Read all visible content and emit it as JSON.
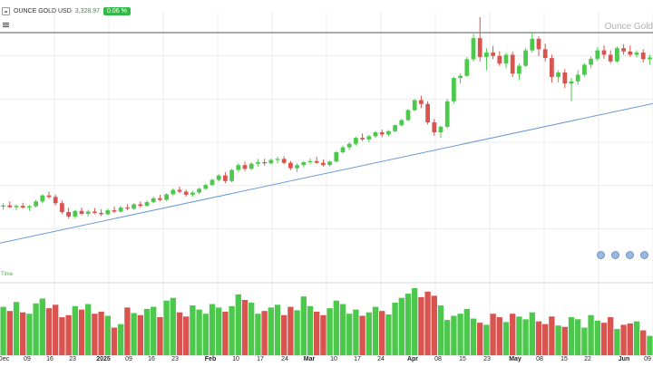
{
  "header": {
    "symbol": "OUNCE GOLD USD",
    "price": "3,328.97",
    "change": "0.06 %"
  },
  "watermark": "Ounce Gold",
  "volume_pane_label": "Time",
  "x_axis_labels": [
    {
      "text": "Dec",
      "bold": false
    },
    {
      "text": "09",
      "bold": false
    },
    {
      "text": "16",
      "bold": false
    },
    {
      "text": "23",
      "bold": false
    },
    {
      "text": "2025",
      "bold": true
    },
    {
      "text": "09",
      "bold": false
    },
    {
      "text": "16",
      "bold": false
    },
    {
      "text": "23",
      "bold": false
    },
    {
      "text": "Feb",
      "bold": true
    },
    {
      "text": "10",
      "bold": false
    },
    {
      "text": "17",
      "bold": false
    },
    {
      "text": "24",
      "bold": false
    },
    {
      "text": "Mar",
      "bold": true
    },
    {
      "text": "10",
      "bold": false
    },
    {
      "text": "17",
      "bold": false
    },
    {
      "text": "24",
      "bold": false
    },
    {
      "text": "Apr",
      "bold": true
    },
    {
      "text": "08",
      "bold": false
    },
    {
      "text": "15",
      "bold": false
    },
    {
      "text": "23",
      "bold": false
    },
    {
      "text": "May",
      "bold": true
    },
    {
      "text": "08",
      "bold": false
    },
    {
      "text": "15",
      "bold": false
    },
    {
      "text": "22",
      "bold": false
    },
    {
      "text": "Jun",
      "bold": true
    },
    {
      "text": "09",
      "bold": false
    }
  ],
  "colors": {
    "up": "#4cc94c",
    "down": "#d9534f",
    "ma": "#6b9bd2",
    "hline": "#555555",
    "grid": "#ececec"
  },
  "event_icons": [
    "calendar-event-icon",
    "calendar-event-icon",
    "calendar-event-icon",
    "calendar-event-icon"
  ],
  "chart_data": {
    "type": "candlestick",
    "bars": [
      {
        "o": 2645,
        "h": 2660,
        "l": 2630,
        "c": 2650
      },
      {
        "o": 2650,
        "h": 2668,
        "l": 2638,
        "c": 2642
      },
      {
        "o": 2642,
        "h": 2655,
        "l": 2628,
        "c": 2648
      },
      {
        "o": 2648,
        "h": 2662,
        "l": 2635,
        "c": 2640
      },
      {
        "o": 2640,
        "h": 2652,
        "l": 2625,
        "c": 2646
      },
      {
        "o": 2646,
        "h": 2675,
        "l": 2640,
        "c": 2668
      },
      {
        "o": 2668,
        "h": 2700,
        "l": 2660,
        "c": 2695
      },
      {
        "o": 2695,
        "h": 2712,
        "l": 2680,
        "c": 2688
      },
      {
        "o": 2688,
        "h": 2698,
        "l": 2650,
        "c": 2660
      },
      {
        "o": 2660,
        "h": 2672,
        "l": 2610,
        "c": 2620
      },
      {
        "o": 2620,
        "h": 2640,
        "l": 2590,
        "c": 2600
      },
      {
        "o": 2600,
        "h": 2630,
        "l": 2592,
        "c": 2625
      },
      {
        "o": 2625,
        "h": 2640,
        "l": 2605,
        "c": 2612
      },
      {
        "o": 2612,
        "h": 2630,
        "l": 2600,
        "c": 2622
      },
      {
        "o": 2622,
        "h": 2638,
        "l": 2610,
        "c": 2616
      },
      {
        "o": 2616,
        "h": 2632,
        "l": 2602,
        "c": 2610
      },
      {
        "o": 2610,
        "h": 2635,
        "l": 2605,
        "c": 2628
      },
      {
        "o": 2628,
        "h": 2645,
        "l": 2615,
        "c": 2622
      },
      {
        "o": 2622,
        "h": 2648,
        "l": 2618,
        "c": 2640
      },
      {
        "o": 2640,
        "h": 2655,
        "l": 2628,
        "c": 2635
      },
      {
        "o": 2635,
        "h": 2660,
        "l": 2630,
        "c": 2655
      },
      {
        "o": 2655,
        "h": 2668,
        "l": 2640,
        "c": 2648
      },
      {
        "o": 2648,
        "h": 2672,
        "l": 2645,
        "c": 2665
      },
      {
        "o": 2665,
        "h": 2690,
        "l": 2660,
        "c": 2682
      },
      {
        "o": 2682,
        "h": 2698,
        "l": 2668,
        "c": 2675
      },
      {
        "o": 2675,
        "h": 2705,
        "l": 2670,
        "c": 2700
      },
      {
        "o": 2700,
        "h": 2728,
        "l": 2695,
        "c": 2720
      },
      {
        "o": 2720,
        "h": 2735,
        "l": 2705,
        "c": 2712
      },
      {
        "o": 2712,
        "h": 2722,
        "l": 2690,
        "c": 2698
      },
      {
        "o": 2698,
        "h": 2715,
        "l": 2690,
        "c": 2708
      },
      {
        "o": 2708,
        "h": 2730,
        "l": 2700,
        "c": 2725
      },
      {
        "o": 2725,
        "h": 2748,
        "l": 2720,
        "c": 2742
      },
      {
        "o": 2742,
        "h": 2772,
        "l": 2738,
        "c": 2765
      },
      {
        "o": 2765,
        "h": 2790,
        "l": 2758,
        "c": 2785
      },
      {
        "o": 2785,
        "h": 2800,
        "l": 2750,
        "c": 2760
      },
      {
        "o": 2760,
        "h": 2815,
        "l": 2755,
        "c": 2810
      },
      {
        "o": 2810,
        "h": 2840,
        "l": 2800,
        "c": 2832
      },
      {
        "o": 2832,
        "h": 2848,
        "l": 2805,
        "c": 2815
      },
      {
        "o": 2815,
        "h": 2845,
        "l": 2810,
        "c": 2838
      },
      {
        "o": 2838,
        "h": 2860,
        "l": 2825,
        "c": 2845
      },
      {
        "o": 2845,
        "h": 2860,
        "l": 2830,
        "c": 2840
      },
      {
        "o": 2840,
        "h": 2862,
        "l": 2835,
        "c": 2855
      },
      {
        "o": 2855,
        "h": 2870,
        "l": 2840,
        "c": 2860
      },
      {
        "o": 2860,
        "h": 2872,
        "l": 2835,
        "c": 2842
      },
      {
        "o": 2842,
        "h": 2850,
        "l": 2810,
        "c": 2818
      },
      {
        "o": 2818,
        "h": 2840,
        "l": 2800,
        "c": 2832
      },
      {
        "o": 2832,
        "h": 2850,
        "l": 2822,
        "c": 2845
      },
      {
        "o": 2845,
        "h": 2862,
        "l": 2835,
        "c": 2850
      },
      {
        "o": 2850,
        "h": 2870,
        "l": 2838,
        "c": 2842
      },
      {
        "o": 2842,
        "h": 2858,
        "l": 2825,
        "c": 2832
      },
      {
        "o": 2832,
        "h": 2852,
        "l": 2825,
        "c": 2848
      },
      {
        "o": 2848,
        "h": 2895,
        "l": 2845,
        "c": 2890
      },
      {
        "o": 2890,
        "h": 2920,
        "l": 2885,
        "c": 2912
      },
      {
        "o": 2912,
        "h": 2935,
        "l": 2900,
        "c": 2928
      },
      {
        "o": 2928,
        "h": 2960,
        "l": 2920,
        "c": 2955
      },
      {
        "o": 2955,
        "h": 2975,
        "l": 2940,
        "c": 2948
      },
      {
        "o": 2948,
        "h": 2968,
        "l": 2935,
        "c": 2962
      },
      {
        "o": 2962,
        "h": 2985,
        "l": 2955,
        "c": 2980
      },
      {
        "o": 2980,
        "h": 2992,
        "l": 2958,
        "c": 2970
      },
      {
        "o": 2970,
        "h": 2990,
        "l": 2962,
        "c": 2985
      },
      {
        "o": 2985,
        "h": 3015,
        "l": 2980,
        "c": 3012
      },
      {
        "o": 3012,
        "h": 3040,
        "l": 3005,
        "c": 3035
      },
      {
        "o": 3035,
        "h": 3085,
        "l": 3030,
        "c": 3080
      },
      {
        "o": 3080,
        "h": 3130,
        "l": 3075,
        "c": 3125
      },
      {
        "o": 3125,
        "h": 3145,
        "l": 3090,
        "c": 3108
      },
      {
        "o": 3108,
        "h": 3120,
        "l": 3015,
        "c": 3025
      },
      {
        "o": 3025,
        "h": 3040,
        "l": 2965,
        "c": 2980
      },
      {
        "o": 2980,
        "h": 3010,
        "l": 2955,
        "c": 3005
      },
      {
        "o": 3005,
        "h": 3130,
        "l": 2998,
        "c": 3120
      },
      {
        "o": 3120,
        "h": 3230,
        "l": 3110,
        "c": 3225
      },
      {
        "o": 3225,
        "h": 3245,
        "l": 3200,
        "c": 3235
      },
      {
        "o": 3235,
        "h": 3320,
        "l": 3230,
        "c": 3310
      },
      {
        "o": 3310,
        "h": 3425,
        "l": 3300,
        "c": 3405
      },
      {
        "o": 3405,
        "h": 3500,
        "l": 3300,
        "c": 3320
      },
      {
        "o": 3320,
        "h": 3360,
        "l": 3260,
        "c": 3340
      },
      {
        "o": 3340,
        "h": 3370,
        "l": 3310,
        "c": 3325
      },
      {
        "o": 3325,
        "h": 3345,
        "l": 3280,
        "c": 3290
      },
      {
        "o": 3290,
        "h": 3340,
        "l": 3270,
        "c": 3330
      },
      {
        "o": 3330,
        "h": 3345,
        "l": 3230,
        "c": 3245
      },
      {
        "o": 3245,
        "h": 3290,
        "l": 3215,
        "c": 3280
      },
      {
        "o": 3280,
        "h": 3360,
        "l": 3275,
        "c": 3350
      },
      {
        "o": 3350,
        "h": 3430,
        "l": 3340,
        "c": 3402
      },
      {
        "o": 3402,
        "h": 3412,
        "l": 3325,
        "c": 3355
      },
      {
        "o": 3355,
        "h": 3380,
        "l": 3300,
        "c": 3315
      },
      {
        "o": 3315,
        "h": 3330,
        "l": 3205,
        "c": 3230
      },
      {
        "o": 3230,
        "h": 3260,
        "l": 3205,
        "c": 3250
      },
      {
        "o": 3250,
        "h": 3265,
        "l": 3180,
        "c": 3200
      },
      {
        "o": 3200,
        "h": 3225,
        "l": 3120,
        "c": 3210
      },
      {
        "o": 3210,
        "h": 3260,
        "l": 3195,
        "c": 3240
      },
      {
        "o": 3240,
        "h": 3292,
        "l": 3232,
        "c": 3285
      },
      {
        "o": 3285,
        "h": 3322,
        "l": 3270,
        "c": 3312
      },
      {
        "o": 3312,
        "h": 3365,
        "l": 3302,
        "c": 3350
      },
      {
        "o": 3350,
        "h": 3372,
        "l": 3312,
        "c": 3330
      },
      {
        "o": 3330,
        "h": 3350,
        "l": 3290,
        "c": 3300
      },
      {
        "o": 3300,
        "h": 3368,
        "l": 3295,
        "c": 3360
      },
      {
        "o": 3360,
        "h": 3378,
        "l": 3330,
        "c": 3345
      },
      {
        "o": 3345,
        "h": 3372,
        "l": 3320,
        "c": 3330
      },
      {
        "o": 3330,
        "h": 3350,
        "l": 3318,
        "c": 3340
      },
      {
        "o": 3340,
        "h": 3355,
        "l": 3295,
        "c": 3310
      },
      {
        "o": 3310,
        "h": 3330,
        "l": 3285,
        "c": 3318
      }
    ],
    "volume": [
      70,
      64,
      77,
      62,
      60,
      75,
      82,
      68,
      73,
      55,
      58,
      71,
      66,
      74,
      60,
      63,
      57,
      40,
      45,
      69,
      61,
      58,
      67,
      70,
      55,
      79,
      83,
      62,
      56,
      72,
      66,
      60,
      74,
      69,
      63,
      71,
      88,
      80,
      76,
      60,
      64,
      69,
      73,
      58,
      70,
      65,
      85,
      71,
      63,
      58,
      68,
      79,
      74,
      60,
      66,
      57,
      62,
      70,
      64,
      59,
      76,
      83,
      89,
      97,
      84,
      92,
      86,
      72,
      51,
      57,
      60,
      67,
      53,
      47,
      44,
      60,
      55,
      48,
      60,
      56,
      52,
      62,
      49,
      45,
      56,
      43,
      41,
      55,
      52,
      40,
      58,
      50,
      47,
      55,
      38,
      44,
      46,
      49,
      36,
      28
    ],
    "ma": [
      2480,
      3110
    ],
    "hline": 3430,
    "ylim": [
      2350,
      3520
    ]
  }
}
